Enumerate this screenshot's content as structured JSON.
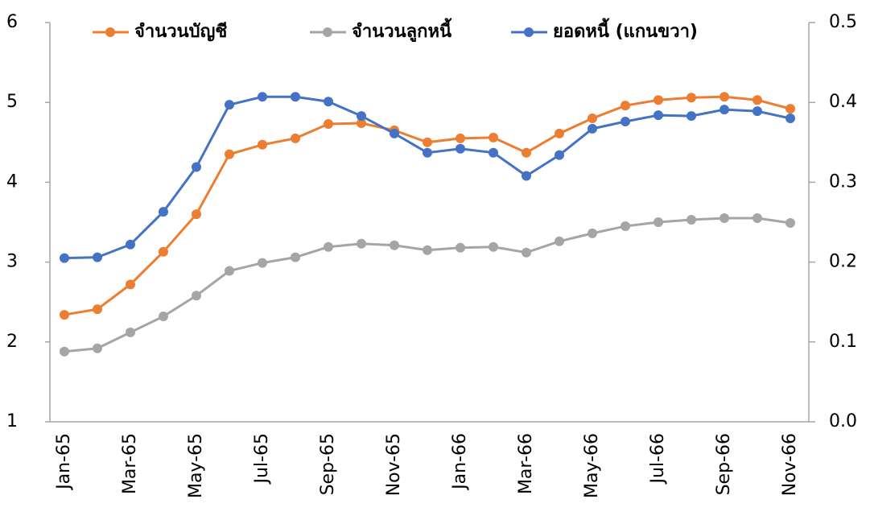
{
  "chart_data": {
    "type": "line",
    "categories": [
      "Jan-65",
      null,
      "Mar-65",
      null,
      "May-65",
      null,
      "Jul-65",
      null,
      "Sep-65",
      null,
      "Nov-65",
      null,
      "Jan-66",
      null,
      "Mar-66",
      null,
      "May-66",
      null,
      "Jul-66",
      null,
      "Sep-66",
      null,
      "Nov-66"
    ],
    "series": [
      {
        "name": "จำนวนบัญชี",
        "color": "#ed7d31",
        "values": [
          2.34,
          2.41,
          2.72,
          3.13,
          3.6,
          4.35,
          4.47,
          4.55,
          4.73,
          4.74,
          4.65,
          4.5,
          4.55,
          4.56,
          4.37,
          4.61,
          4.8,
          4.96,
          5.03,
          5.06,
          5.07,
          5.03,
          4.92
        ]
      },
      {
        "name": "จำนวนลูกหนี้",
        "color": "#a5a5a5",
        "values": [
          1.88,
          1.92,
          2.12,
          2.32,
          2.58,
          2.89,
          2.99,
          3.06,
          3.19,
          3.23,
          3.21,
          3.15,
          3.18,
          3.19,
          3.12,
          3.26,
          3.36,
          3.45,
          3.5,
          3.53,
          3.55,
          3.55,
          3.49
        ]
      },
      {
        "name": "ยอดหนี้ (แกนขวา)",
        "color": "#4472c4",
        "axis": "y2",
        "values": [
          0.205,
          0.206,
          0.222,
          0.263,
          0.319,
          0.397,
          0.407,
          0.407,
          0.401,
          0.383,
          0.361,
          0.337,
          0.342,
          0.337,
          0.308,
          0.334,
          0.367,
          0.376,
          0.384,
          0.383,
          0.391,
          0.389,
          0.38
        ]
      }
    ],
    "ylim": [
      1,
      6
    ],
    "yticks": [
      1,
      2,
      3,
      4,
      5,
      6
    ],
    "y2lim": [
      0,
      0.5
    ],
    "y2ticks": [
      {
        "value": 0,
        "label": "0.0"
      },
      0.1,
      0.2,
      0.3,
      0.4,
      0.5
    ],
    "grid": false,
    "legend": "top"
  }
}
